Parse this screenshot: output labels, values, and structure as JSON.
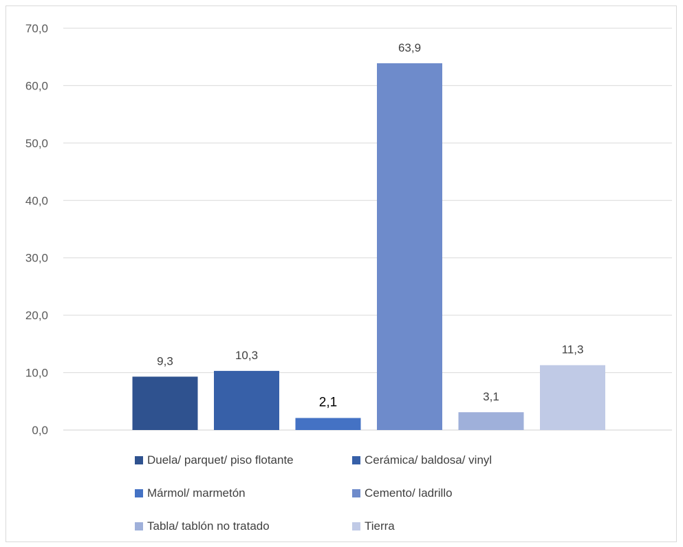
{
  "chart_data": {
    "type": "bar",
    "categories": [
      "Duela/ parquet/ piso flotante",
      "Cerámica/ baldosa/ vinyl",
      "Mármol/ marmetón",
      "Cemento/ ladrillo",
      "Tabla/ tablón no tratado",
      "Tierra"
    ],
    "values": [
      9.3,
      10.3,
      2.1,
      63.9,
      3.1,
      11.3
    ],
    "data_labels": [
      "9,3",
      "10,3",
      "2,1",
      "63,9",
      "3,1",
      "11,3"
    ],
    "colors": [
      "#2f528f",
      "#3760a8",
      "#4472c4",
      "#6e8bcb",
      "#9fb0da",
      "#c0cae6"
    ],
    "y_ticks": [
      "0,0",
      "10,0",
      "20,0",
      "30,0",
      "40,0",
      "50,0",
      "60,0",
      "70,0"
    ],
    "ylim": [
      0,
      70
    ],
    "grid": true,
    "legend_position": "bottom",
    "title": "",
    "xlabel": "",
    "ylabel": ""
  }
}
